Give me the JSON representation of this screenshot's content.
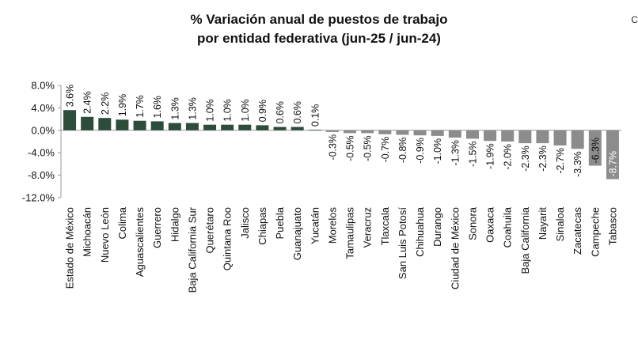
{
  "chart_data": {
    "type": "bar",
    "title": "% Variación anual de puestos de trabajo",
    "subtitle": "por entidad federativa (jun-25 / jun-24)",
    "xlabel": "",
    "ylabel": "",
    "ylim": [
      -12.0,
      8.0
    ],
    "yticks": [
      8.0,
      4.0,
      0.0,
      -4.0,
      -8.0,
      -12.0
    ],
    "ytick_labels": [
      "8.0%",
      "4.0%",
      "0.0%",
      "-4.0%",
      "-8.0%",
      "-12.0%"
    ],
    "grid": false,
    "legend": "none",
    "colors": {
      "positive": "#2d4c3c",
      "negative": "#8c8c8c"
    },
    "categories": [
      "Estado de México",
      "Michoacán",
      "Nuevo León",
      "Colima",
      "Aguascalientes",
      "Guerrero",
      "Hidalgo",
      "Baja California Sur",
      "Querétaro",
      "Quintana Roo",
      "Jalisco",
      "Chiapas",
      "Puebla",
      "Guanajuato",
      "Yucatán",
      "Morelos",
      "Tamaulipas",
      "Veracruz",
      "Tlaxcala",
      "San Luis Potosí",
      "Chihuahua",
      "Durango",
      "Ciudad de México",
      "Sonora",
      "Oaxaca",
      "Coahuila",
      "Baja California",
      "Nayarit",
      "Sinaloa",
      "Zacatecas",
      "Campeche",
      "Tabasco"
    ],
    "values": [
      3.6,
      2.4,
      2.2,
      1.9,
      1.7,
      1.6,
      1.3,
      1.3,
      1.0,
      1.0,
      1.0,
      0.9,
      0.6,
      0.6,
      0.1,
      -0.3,
      -0.5,
      -0.5,
      -0.7,
      -0.8,
      -0.9,
      -1.0,
      -1.3,
      -1.5,
      -1.9,
      -2.0,
      -2.3,
      -2.3,
      -2.7,
      -3.3,
      -6.3,
      -8.7
    ],
    "value_labels": [
      "3.6%",
      "2.4%",
      "2.2%",
      "1.9%",
      "1.7%",
      "1.6%",
      "1.3%",
      "1.3%",
      "1.0%",
      "1.0%",
      "1.0%",
      "0.9%",
      "0.6%",
      "0.6%",
      "0.1%",
      "-0.3%",
      "-0.5%",
      "-0.5%",
      "-0.7%",
      "-0.8%",
      "-0.9%",
      "-1.0%",
      "-1.3%",
      "-1.5%",
      "-1.9%",
      "-2.0%",
      "-2.3%",
      "-2.3%",
      "-2.7%",
      "-3.3%",
      "-6.3%",
      "-8.7%"
    ]
  },
  "edge_mark": "C"
}
